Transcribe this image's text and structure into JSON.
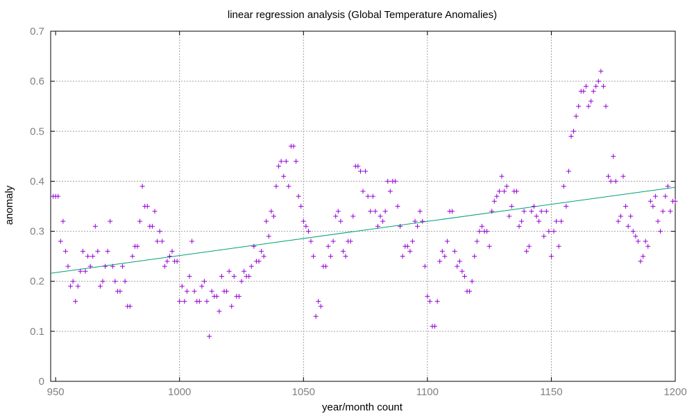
{
  "chart_data": {
    "type": "scatter",
    "title": "linear regression analysis (Global Temperature Anomalies)",
    "xlabel": "year/month count",
    "ylabel": "anomaly",
    "xlim": [
      948,
      1200
    ],
    "ylim": [
      0,
      0.7
    ],
    "xticks": [
      950,
      1000,
      1050,
      1100,
      1150,
      1200
    ],
    "yticks": [
      0,
      0.1,
      0.2,
      0.3,
      0.4,
      0.5,
      0.6,
      0.7
    ],
    "grid": true,
    "legend": "none",
    "colors": {
      "points": "#9400d3",
      "fit": "#009e73",
      "tick_text": "#808080",
      "grid": "#a0a0a0"
    },
    "series": [
      {
        "type": "scatter",
        "marker": "+",
        "x": [
          949,
          950,
          951,
          952,
          953,
          954,
          955,
          956,
          957,
          958,
          959,
          960,
          961,
          962,
          963,
          964,
          965,
          966,
          967,
          968,
          969,
          970,
          971,
          972,
          973,
          974,
          975,
          976,
          977,
          978,
          979,
          980,
          981,
          982,
          983,
          984,
          985,
          986,
          987,
          988,
          989,
          990,
          991,
          992,
          993,
          994,
          995,
          996,
          997,
          998,
          999,
          1000,
          1001,
          1002,
          1003,
          1004,
          1005,
          1006,
          1007,
          1008,
          1009,
          1010,
          1011,
          1012,
          1013,
          1014,
          1015,
          1016,
          1017,
          1018,
          1019,
          1020,
          1021,
          1022,
          1023,
          1024,
          1025,
          1026,
          1027,
          1028,
          1029,
          1030,
          1031,
          1032,
          1033,
          1034,
          1035,
          1036,
          1037,
          1038,
          1039,
          1040,
          1041,
          1042,
          1043,
          1044,
          1045,
          1046,
          1047,
          1048,
          1049,
          1050,
          1051,
          1052,
          1053,
          1054,
          1055,
          1056,
          1057,
          1058,
          1059,
          1060,
          1061,
          1062,
          1063,
          1064,
          1065,
          1066,
          1067,
          1068,
          1069,
          1070,
          1071,
          1072,
          1073,
          1074,
          1075,
          1076,
          1077,
          1078,
          1079,
          1080,
          1081,
          1082,
          1083,
          1084,
          1085,
          1086,
          1087,
          1088,
          1089,
          1090,
          1091,
          1092,
          1093,
          1094,
          1095,
          1096,
          1097,
          1098,
          1099,
          1100,
          1101,
          1102,
          1103,
          1104,
          1105,
          1106,
          1107,
          1108,
          1109,
          1110,
          1111,
          1112,
          1113,
          1114,
          1115,
          1116,
          1117,
          1118,
          1119,
          1120,
          1121,
          1122,
          1123,
          1124,
          1125,
          1126,
          1127,
          1128,
          1129,
          1130,
          1131,
          1132,
          1133,
          1134,
          1135,
          1136,
          1137,
          1138,
          1139,
          1140,
          1141,
          1142,
          1143,
          1144,
          1145,
          1146,
          1147,
          1148,
          1149,
          1150,
          1151,
          1152,
          1153,
          1154,
          1155,
          1156,
          1157,
          1158,
          1159,
          1160,
          1161,
          1162,
          1163,
          1164,
          1165,
          1166,
          1167,
          1168,
          1169,
          1170,
          1171,
          1172,
          1173,
          1174,
          1175,
          1176,
          1177,
          1178,
          1179,
          1180,
          1181,
          1182,
          1183,
          1184,
          1185,
          1186,
          1187,
          1188,
          1189,
          1190,
          1191,
          1192,
          1193,
          1194,
          1195,
          1196,
          1197,
          1198,
          1199,
          1200
        ],
        "y": [
          0.37,
          0.37,
          0.37,
          0.28,
          0.32,
          0.26,
          0.23,
          0.19,
          0.2,
          0.16,
          0.19,
          0.22,
          0.26,
          0.22,
          0.25,
          0.23,
          0.25,
          0.31,
          0.26,
          0.19,
          0.2,
          0.23,
          0.26,
          0.32,
          0.23,
          0.2,
          0.18,
          0.18,
          0.23,
          0.2,
          0.15,
          0.15,
          0.25,
          0.27,
          0.27,
          0.32,
          0.39,
          0.35,
          0.35,
          0.31,
          0.31,
          0.34,
          0.28,
          0.3,
          0.28,
          0.23,
          0.24,
          0.25,
          0.26,
          0.24,
          0.24,
          0.16,
          0.19,
          0.16,
          0.18,
          0.21,
          0.28,
          0.18,
          0.16,
          0.16,
          0.19,
          0.2,
          0.16,
          0.09,
          0.18,
          0.17,
          0.17,
          0.14,
          0.21,
          0.18,
          0.18,
          0.22,
          0.15,
          0.21,
          0.17,
          0.17,
          0.2,
          0.22,
          0.21,
          0.21,
          0.23,
          0.27,
          0.24,
          0.24,
          0.26,
          0.25,
          0.32,
          0.29,
          0.34,
          0.33,
          0.39,
          0.43,
          0.44,
          0.41,
          0.44,
          0.39,
          0.47,
          0.47,
          0.44,
          0.37,
          0.35,
          0.32,
          0.31,
          0.3,
          0.28,
          0.25,
          0.13,
          0.16,
          0.15,
          0.23,
          0.23,
          0.27,
          0.25,
          0.28,
          0.33,
          0.34,
          0.32,
          0.26,
          0.25,
          0.28,
          0.28,
          0.33,
          0.43,
          0.43,
          0.42,
          0.38,
          0.42,
          0.37,
          0.34,
          0.37,
          0.34,
          0.31,
          0.33,
          0.32,
          0.34,
          0.4,
          0.38,
          0.4,
          0.4,
          0.35,
          0.31,
          0.25,
          0.27,
          0.27,
          0.26,
          0.28,
          0.32,
          0.31,
          0.34,
          0.32,
          0.23,
          0.17,
          0.16,
          0.11,
          0.11,
          0.16,
          0.24,
          0.26,
          0.25,
          0.28,
          0.34,
          0.34,
          0.26,
          0.23,
          0.24,
          0.22,
          0.21,
          0.18,
          0.18,
          0.2,
          0.25,
          0.28,
          0.3,
          0.31,
          0.3,
          0.3,
          0.27,
          0.34,
          0.36,
          0.37,
          0.38,
          0.41,
          0.38,
          0.39,
          0.33,
          0.35,
          0.38,
          0.38,
          0.31,
          0.32,
          0.34,
          0.26,
          0.27,
          0.34,
          0.35,
          0.33,
          0.32,
          0.34,
          0.29,
          0.34,
          0.3,
          0.25,
          0.3,
          0.32,
          0.27,
          0.32,
          0.39,
          0.35,
          0.42,
          0.49,
          0.5,
          0.53,
          0.55,
          0.58,
          0.58,
          0.59,
          0.55,
          0.56,
          0.58,
          0.59,
          0.6,
          0.62,
          0.59,
          0.55,
          0.41,
          0.4,
          0.45,
          0.4,
          0.32,
          0.33,
          0.41,
          0.35,
          0.31,
          0.33,
          0.3,
          0.29,
          0.28,
          0.24,
          0.25,
          0.28,
          0.27,
          0.36,
          0.35,
          0.37,
          0.32,
          0.3,
          0.34,
          0.37,
          0.39,
          0.34,
          0.36,
          0.36
        ]
      },
      {
        "type": "line",
        "x": [
          948,
          1200
        ],
        "y": [
          0.216,
          0.388
        ]
      }
    ]
  }
}
